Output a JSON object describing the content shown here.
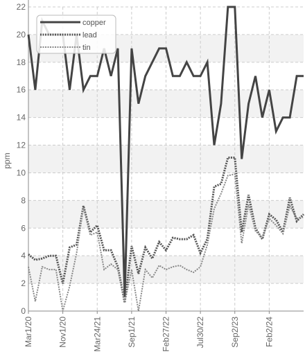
{
  "chart_data": {
    "type": "line",
    "ylabel": "ppm",
    "ylim": [
      0,
      22
    ],
    "yticks": [
      0,
      2,
      4,
      6,
      8,
      10,
      12,
      14,
      16,
      18,
      20,
      22
    ],
    "xticks": [
      "Mar1/20",
      "Nov1/20",
      "Mar24/21",
      "Sep1/21",
      "Feb27/22",
      "Jul30/22",
      "Sep2/23",
      "Feb2/24"
    ],
    "xtick_index": [
      0,
      5,
      10,
      15,
      20,
      25,
      30,
      35
    ],
    "x_count": 41,
    "grid": true,
    "legend_position": "top-left",
    "colors": {
      "copper": "#444444",
      "lead": "#555555",
      "tin": "#888888",
      "grid": "#cccccc",
      "band": "#f2f2f2"
    },
    "series": [
      {
        "name": "copper",
        "values": [
          20,
          16,
          21,
          20,
          20,
          20,
          16,
          20,
          16,
          17,
          17,
          19,
          17,
          19,
          1,
          19,
          15,
          17,
          18,
          19,
          19,
          17,
          17,
          18,
          17,
          17,
          18,
          12,
          15,
          22,
          22,
          11,
          15,
          17,
          14,
          16,
          13,
          14,
          14,
          17,
          17
        ]
      },
      {
        "name": "lead",
        "values": [
          4.1,
          3.7,
          3.8,
          4,
          4,
          2,
          4.6,
          4.8,
          7.6,
          5.7,
          6.2,
          4.4,
          4.4,
          3.2,
          0.6,
          4.7,
          2.7,
          4.6,
          3.8,
          5,
          4.4,
          5.3,
          5.2,
          5.2,
          5.5,
          4.2,
          5.2,
          9,
          9.2,
          11.1,
          11.1,
          5.7,
          8.4,
          6,
          5.2,
          7,
          6.6,
          5.7,
          8.2,
          6.5,
          7
        ]
      },
      {
        "name": "tin",
        "values": [
          3.2,
          0.7,
          3.2,
          3,
          3,
          0,
          1.8,
          4.2,
          7.5,
          5.5,
          5.7,
          3,
          3.4,
          3,
          0.6,
          3,
          0,
          3,
          2.4,
          3.3,
          3,
          3.2,
          3.3,
          3,
          2.8,
          3.2,
          4.8,
          7.4,
          8.5,
          9.8,
          9.9,
          4.9,
          7.7,
          5.8,
          5.3,
          6.7,
          6.2,
          5.6,
          7.6,
          6.7,
          6.8
        ]
      }
    ]
  }
}
